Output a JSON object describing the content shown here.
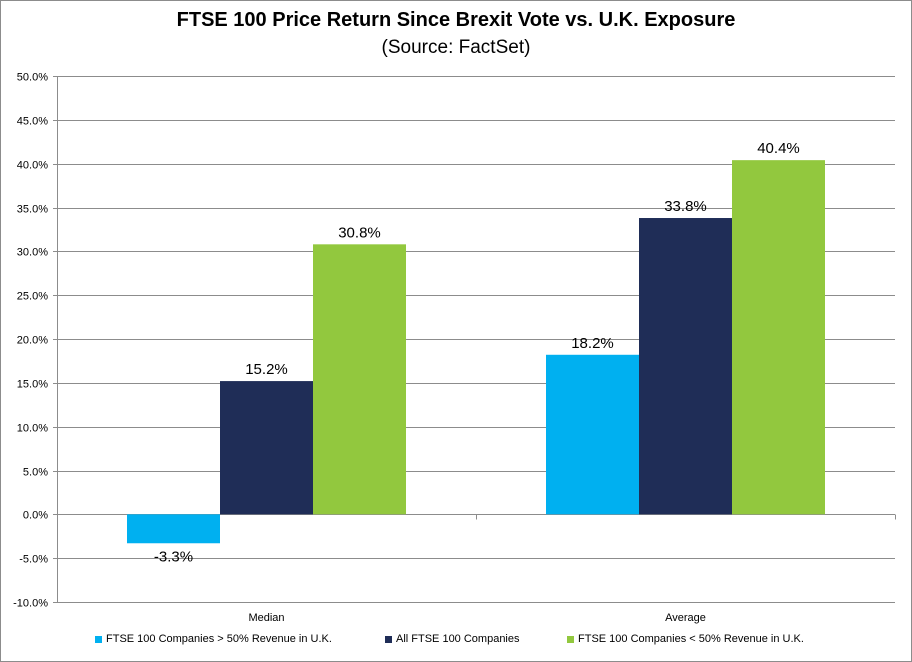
{
  "chart_data": {
    "type": "bar",
    "title": "FTSE 100 Price Return Since Brexit Vote vs. U.K. Exposure",
    "subtitle": "(Source: FactSet)",
    "categories": [
      "Median",
      "Average"
    ],
    "series": [
      {
        "name": "FTSE 100 Companies > 50% Revenue in U.K.",
        "color": "#00b0f0",
        "values": [
          -3.3,
          18.2
        ],
        "labels": [
          "-3.3%",
          "18.2%"
        ]
      },
      {
        "name": "All FTSE 100 Companies",
        "color": "#1f2d57",
        "values": [
          15.2,
          33.8
        ],
        "labels": [
          "15.2%",
          "33.8%"
        ]
      },
      {
        "name": "FTSE 100 Companies < 50% Revenue in U.K.",
        "color": "#92c83e",
        "values": [
          30.8,
          40.4
        ],
        "labels": [
          "30.8%",
          "40.4%"
        ]
      }
    ],
    "ylim": [
      -10,
      50
    ],
    "ytick_step": 5,
    "ytick_labels": [
      "-10.0%",
      "-5.0%",
      "0.0%",
      "5.0%",
      "10.0%",
      "15.0%",
      "20.0%",
      "25.0%",
      "30.0%",
      "35.0%",
      "40.0%",
      "45.0%",
      "50.0%"
    ],
    "xlabel": "",
    "ylabel": "",
    "grid": true,
    "legend_position": "bottom"
  }
}
